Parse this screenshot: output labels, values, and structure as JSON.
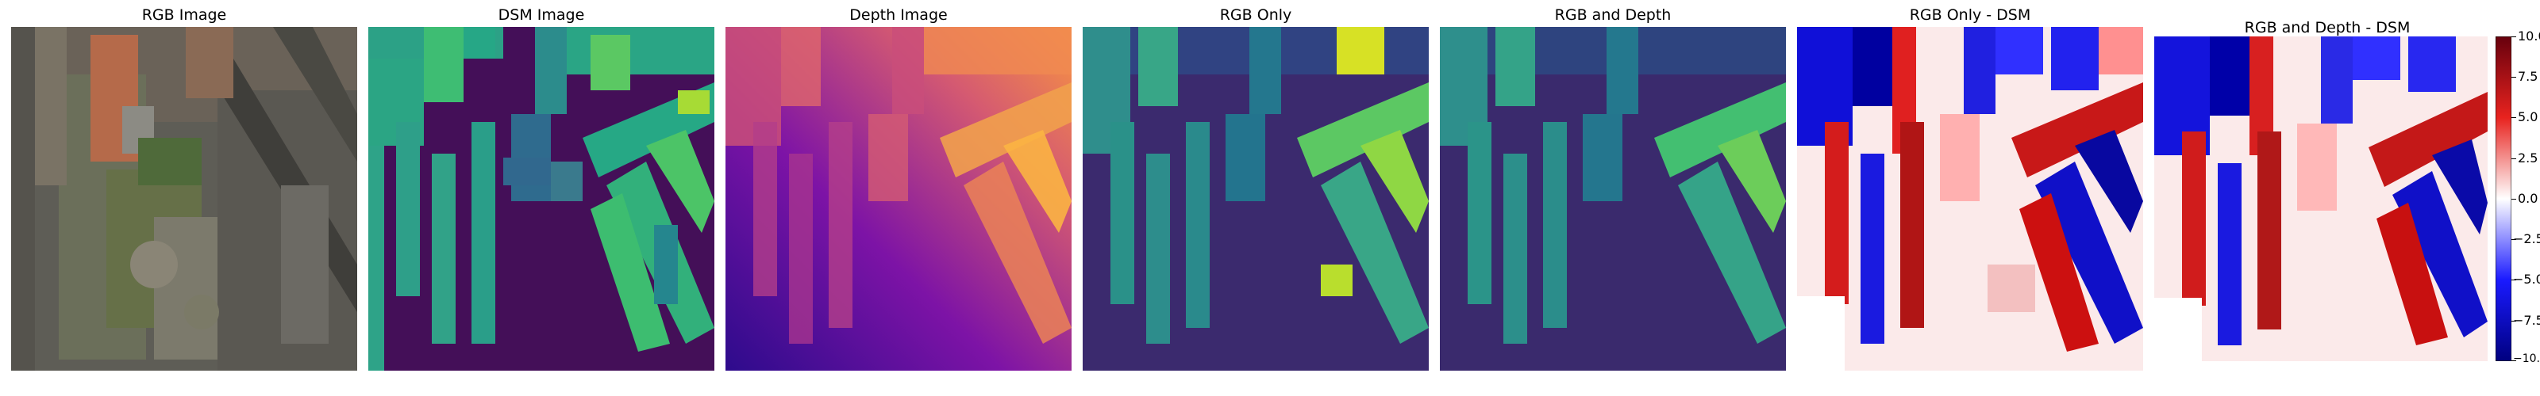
{
  "panels": [
    {
      "title": "RGB Image"
    },
    {
      "title": "DSM Image"
    },
    {
      "title": "Depth Image"
    },
    {
      "title": "RGB Only"
    },
    {
      "title": "RGB and Depth"
    },
    {
      "title": "RGB Only - DSM"
    },
    {
      "title": "RGB and Depth - DSM"
    }
  ],
  "colorbar": {
    "ticks": [
      "10.0",
      "7.5",
      "5.0",
      "2.5",
      "0.0",
      "−2.5",
      "−5.0",
      "−7.5",
      "−10.0"
    ],
    "colors": {
      "top": "#67000d",
      "upper": "#e8231f",
      "mid": "#ffffff",
      "lower": "#1a1aff",
      "bottom": "#00007f"
    }
  }
}
